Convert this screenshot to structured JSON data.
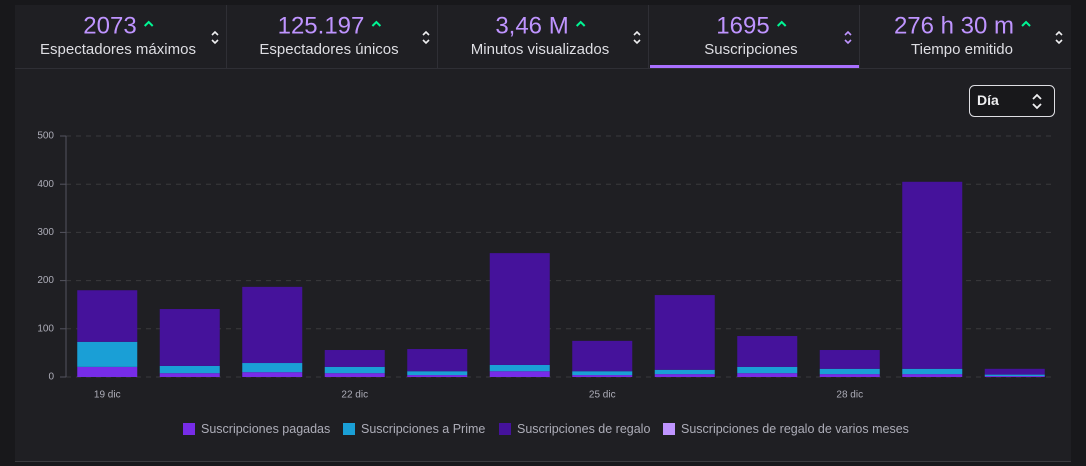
{
  "stats": [
    {
      "value": "2073",
      "label": "Espectadores máximos"
    },
    {
      "value": "125.197",
      "label": "Espectadores únicos"
    },
    {
      "value": "3,46 M",
      "label": "Minutos visualizados"
    },
    {
      "value": "1695",
      "label": "Suscripciones"
    },
    {
      "value": "276 h 30 m",
      "label": "Tiempo emitido"
    }
  ],
  "selector": "Día",
  "chart_data": {
    "type": "stacked-bar",
    "categories": [
      "19 dic",
      null,
      null,
      "22 dic",
      null,
      null,
      "25 dic",
      null,
      null,
      "28 dic",
      null,
      null
    ],
    "series": [
      {
        "name": "Suscripciones pagadas",
        "color": "#772ce8",
        "values": [
          21,
          8,
          10,
          8,
          4,
          12,
          4,
          6,
          8,
          6,
          6,
          2
        ]
      },
      {
        "name": "Suscripciones a Prime",
        "color": "#1a9fd6",
        "values": [
          52,
          15,
          19,
          13,
          8,
          13,
          8,
          9,
          13,
          11,
          11,
          3
        ]
      },
      {
        "name": "Suscripciones de regalo",
        "color": "#45129b",
        "values": [
          107,
          118,
          158,
          35,
          46,
          232,
          63,
          155,
          64,
          39,
          388,
          12
        ]
      },
      {
        "name": "Suscripciones de regalo de varios meses",
        "color": "#bf94ff",
        "values": [
          0,
          0,
          0,
          0,
          0,
          0,
          0,
          0,
          0,
          0,
          0,
          0
        ]
      }
    ],
    "ylim": [
      0,
      500
    ],
    "yticks": [
      0,
      100,
      200,
      300,
      400,
      500
    ],
    "grid": true
  }
}
